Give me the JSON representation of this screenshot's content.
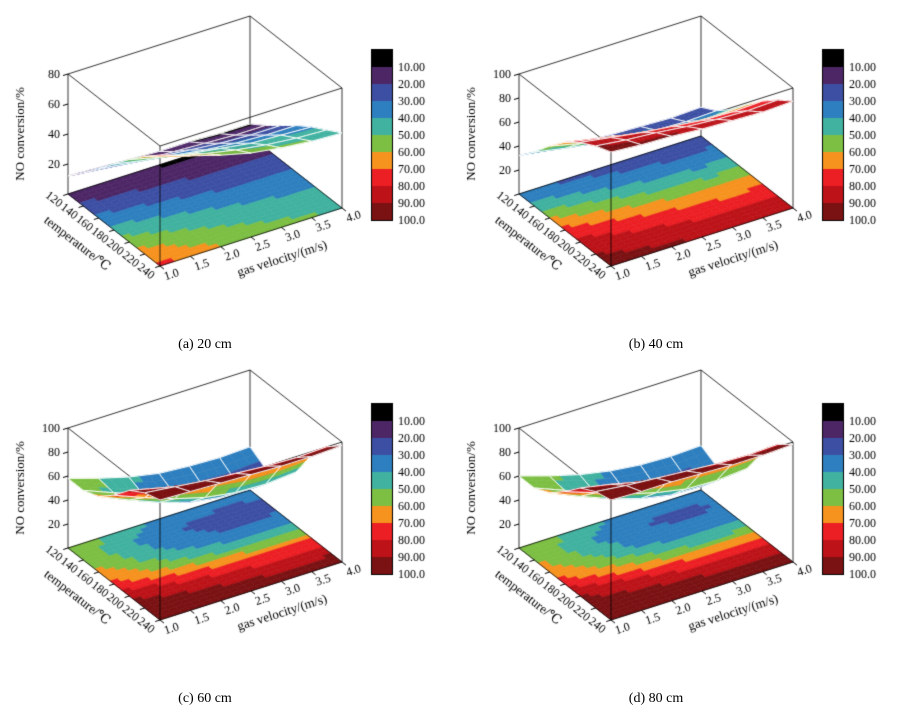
{
  "figure_name": "NO conversion 3D surface plots",
  "legend": {
    "labels": [
      "10.00",
      "20.00",
      "30.00",
      "40.00",
      "50.00",
      "60.00",
      "70.00",
      "80.00",
      "90.00",
      "100.0"
    ],
    "band_colors": [
      "#000000",
      "#4d2666",
      "#3c4fa3",
      "#2e7fbf",
      "#41b2a0",
      "#7cbf43",
      "#f6921e",
      "#ec1f24",
      "#bc1218",
      "#7a1113"
    ],
    "band_bounds": [
      0,
      10,
      20,
      30,
      40,
      50,
      60,
      70,
      80,
      90,
      100
    ]
  },
  "axes_shared": {
    "x_label": "temperature/℃",
    "x_ticks": [
      "120",
      "140",
      "160",
      "180",
      "200",
      "220",
      "240"
    ],
    "y_label": "gas velocity/(m/s)",
    "y_ticks": [
      "1.0",
      "1.5",
      "2.0",
      "2.5",
      "3.0",
      "3.5",
      "4.0"
    ],
    "z_label": "NO conversion/%"
  },
  "chart_data": [
    {
      "id": "a",
      "type": "heatmap",
      "subtype": "3d-surface-with-floor-contour",
      "caption": "(a) 20 cm",
      "x_temperature_C": [
        120,
        140,
        160,
        180,
        200,
        220,
        240
      ],
      "y_gas_velocity_ms": [
        1.0,
        1.5,
        2.0,
        2.5,
        3.0,
        3.5,
        4.0
      ],
      "zlim": [
        0,
        80
      ],
      "z_ticks": [
        20,
        40,
        60,
        80
      ],
      "z_surface_no_conversion_pct": [
        [
          12,
          11,
          10,
          9,
          9,
          8,
          8
        ],
        [
          22,
          20,
          18,
          17,
          16,
          15,
          15
        ],
        [
          33,
          30,
          28,
          26,
          24,
          23,
          23
        ],
        [
          44,
          40,
          37,
          34,
          32,
          31,
          31
        ],
        [
          55,
          50,
          46,
          43,
          40,
          39,
          38
        ],
        [
          65,
          59,
          54,
          50,
          47,
          45,
          44
        ],
        [
          74,
          67,
          61,
          56,
          53,
          51,
          50
        ]
      ]
    },
    {
      "id": "b",
      "type": "heatmap",
      "subtype": "3d-surface-with-floor-contour",
      "caption": "(b) 40 cm",
      "x_temperature_C": [
        120,
        140,
        160,
        180,
        200,
        220,
        240
      ],
      "y_gas_velocity_ms": [
        1.0,
        1.5,
        2.0,
        2.5,
        3.0,
        3.5,
        4.0
      ],
      "zlim": [
        0,
        100
      ],
      "z_ticks": [
        20,
        40,
        60,
        80,
        100
      ],
      "z_surface_no_conversion_pct": [
        [
          32,
          29,
          27,
          25,
          24,
          23,
          24
        ],
        [
          45,
          40,
          36,
          33,
          31,
          30,
          31
        ],
        [
          60,
          54,
          49,
          45,
          42,
          41,
          42
        ],
        [
          73,
          68,
          63,
          59,
          56,
          55,
          56
        ],
        [
          83,
          79,
          75,
          72,
          69,
          68,
          69
        ],
        [
          90,
          87,
          85,
          82,
          80,
          79,
          80
        ],
        [
          95,
          93,
          92,
          90,
          89,
          88,
          89
        ]
      ]
    },
    {
      "id": "c",
      "type": "heatmap",
      "subtype": "3d-surface-with-floor-contour",
      "caption": "(c) 60 cm",
      "x_temperature_C": [
        120,
        140,
        160,
        180,
        200,
        220,
        240
      ],
      "y_gas_velocity_ms": [
        1.0,
        1.5,
        2.0,
        2.5,
        3.0,
        3.5,
        4.0
      ],
      "zlim": [
        0,
        100
      ],
      "z_ticks": [
        20,
        40,
        60,
        80,
        100
      ],
      "z_surface_no_conversion_pct": [
        [
          58,
          50,
          43,
          38,
          36,
          35,
          36
        ],
        [
          58,
          48,
          38,
          31,
          27,
          26,
          28
        ],
        [
          63,
          52,
          42,
          34,
          30,
          29,
          31
        ],
        [
          74,
          64,
          55,
          48,
          44,
          43,
          45
        ],
        [
          88,
          82,
          76,
          72,
          69,
          68,
          69
        ],
        [
          96,
          93,
          90,
          88,
          86,
          85,
          86
        ],
        [
          100,
          99,
          98,
          97,
          96,
          96,
          97
        ]
      ]
    },
    {
      "id": "d",
      "type": "heatmap",
      "subtype": "3d-surface-with-floor-contour",
      "caption": "(d) 80 cm",
      "x_temperature_C": [
        120,
        140,
        160,
        180,
        200,
        220,
        240
      ],
      "y_gas_velocity_ms": [
        1.0,
        1.5,
        2.0,
        2.5,
        3.0,
        3.5,
        4.0
      ],
      "zlim": [
        0,
        100
      ],
      "z_ticks": [
        20,
        40,
        60,
        80,
        100
      ],
      "z_surface_no_conversion_pct": [
        [
          60,
          52,
          45,
          40,
          37,
          36,
          37
        ],
        [
          60,
          50,
          40,
          33,
          29,
          28,
          30
        ],
        [
          66,
          55,
          45,
          37,
          32,
          31,
          33
        ],
        [
          77,
          68,
          59,
          52,
          47,
          46,
          48
        ],
        [
          90,
          85,
          79,
          74,
          71,
          70,
          71
        ],
        [
          97,
          94,
          92,
          90,
          88,
          87,
          88
        ],
        [
          100,
          99,
          99,
          98,
          97,
          97,
          98
        ]
      ]
    }
  ]
}
